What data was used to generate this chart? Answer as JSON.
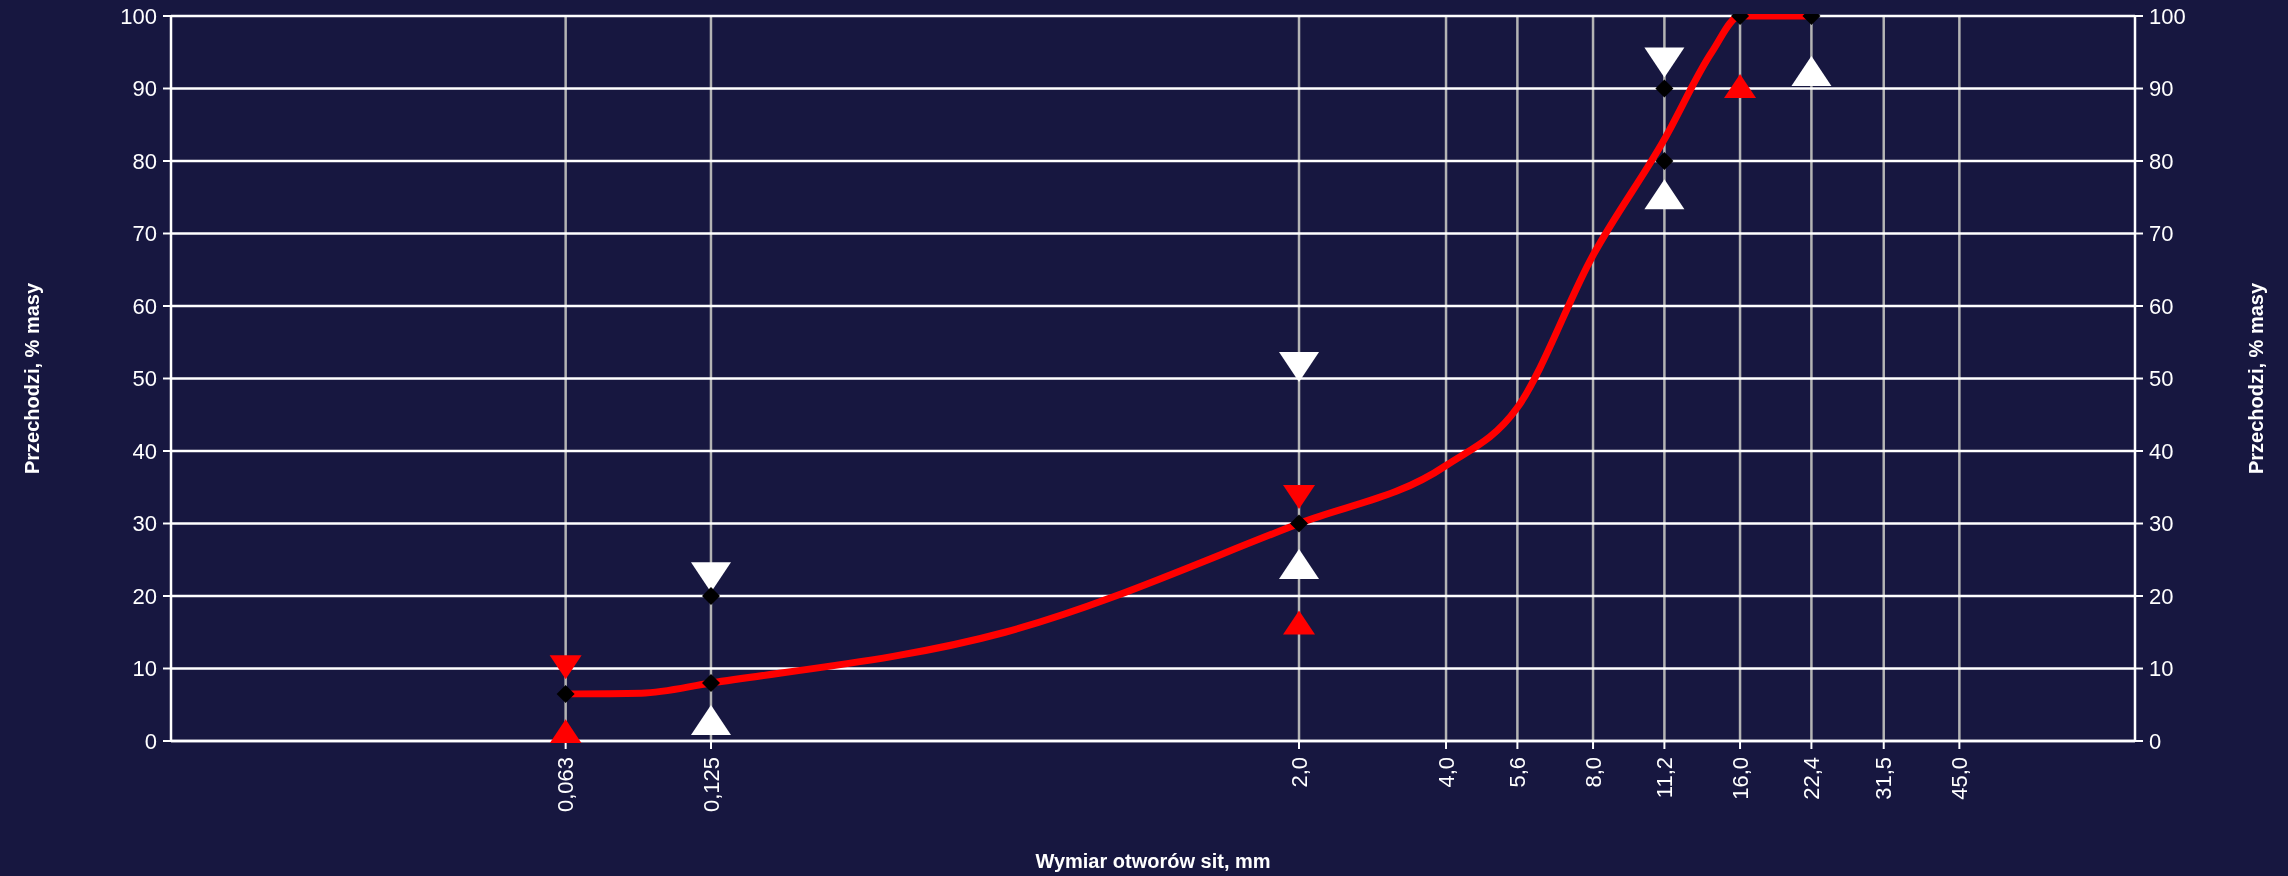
{
  "chart_data": {
    "type": "line",
    "xlabel": "Wymiar otworów sit, mm",
    "ylabel": "Przechodzi, % masy",
    "y2label": "Przechodzi, % masy",
    "log": "x",
    "grid": true,
    "xlim": [
      0.0098,
      103
    ],
    "xticks": [
      {
        "value": 0.063,
        "label": "0,063"
      },
      {
        "value": 0.125,
        "label": "0,125"
      },
      {
        "value": 2,
        "label": "2,0"
      },
      {
        "value": 4,
        "label": "4,0"
      },
      {
        "value": 5.6,
        "label": "5,6"
      },
      {
        "value": 8,
        "label": "8,0"
      },
      {
        "value": 11.2,
        "label": "11,2"
      },
      {
        "value": 16,
        "label": "16,0"
      },
      {
        "value": 22.4,
        "label": "22,4"
      },
      {
        "value": 31.5,
        "label": "31,5"
      },
      {
        "value": 45,
        "label": "45,0"
      }
    ],
    "ylim": [
      0,
      100
    ],
    "yticks": [
      0,
      10,
      20,
      30,
      40,
      50,
      60,
      70,
      80,
      90,
      100
    ],
    "y2lim": [
      0,
      100
    ],
    "y2ticks": [
      0,
      10,
      20,
      30,
      40,
      50,
      60,
      70,
      80,
      90,
      100
    ],
    "series": [
      {
        "color": "#ff0000",
        "marker": "none",
        "x": [
          0.063,
          0.09,
          0.125,
          0.5,
          2,
          4,
          5.6,
          8,
          11.2,
          14,
          16,
          22.4
        ],
        "values": [
          6.5,
          6.6,
          8,
          15,
          30,
          38,
          46,
          67,
          83,
          95,
          100,
          100
        ]
      },
      {
        "type": "scatter",
        "color": "#ffffff",
        "marker": "triangle-down",
        "x": [
          0.125,
          2,
          11.2
        ],
        "values": [
          23,
          52,
          94
        ]
      },
      {
        "type": "scatter",
        "color": "#ffffff",
        "marker": "triangle",
        "x": [
          0.125,
          2,
          11.2,
          22.4
        ],
        "values": [
          2.5,
          24,
          75,
          92
        ]
      },
      {
        "type": "scatter",
        "color": "#ff0000",
        "marker": "triangle-down",
        "x": [
          0.063,
          2
        ],
        "values": [
          10.5,
          34
        ]
      },
      {
        "type": "scatter",
        "color": "#ff0000",
        "marker": "triangle",
        "x": [
          0.063,
          2,
          16
        ],
        "values": [
          1,
          16,
          90
        ]
      },
      {
        "type": "scatter",
        "color": "#000000",
        "marker": "diamond",
        "x": [
          0.063,
          0.125,
          0.125,
          2,
          11.2,
          11.2,
          16,
          22.4
        ],
        "values": [
          6.5,
          8,
          20,
          30,
          90,
          80,
          100,
          100
        ]
      }
    ]
  }
}
